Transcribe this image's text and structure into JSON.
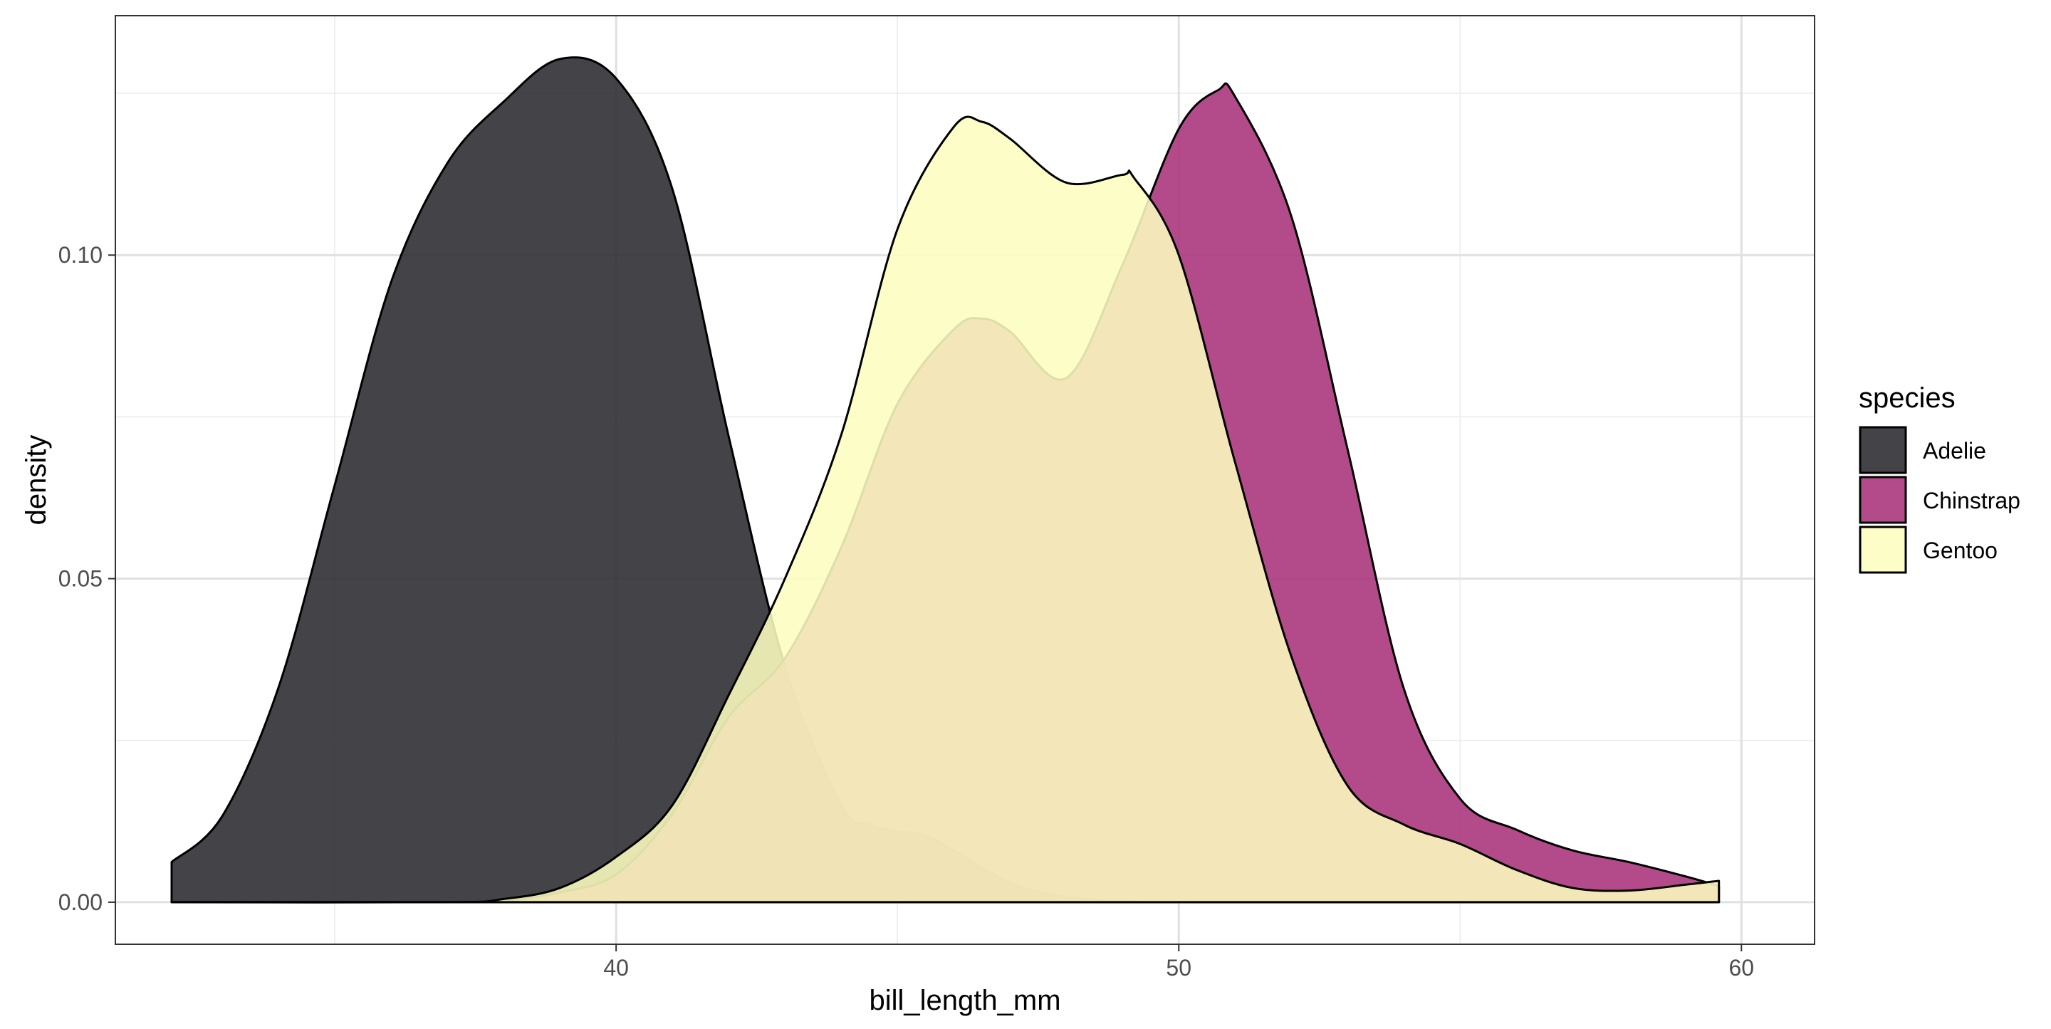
{
  "chart_data": {
    "type": "area",
    "title": "",
    "xlabel": "bill_length_mm",
    "ylabel": "density",
    "xlim": [
      31.1,
      61.3
    ],
    "ylim": [
      -0.0065,
      0.137
    ],
    "x_ticks": [
      40,
      50,
      60
    ],
    "x_tick_labels": [
      "40",
      "50",
      "60"
    ],
    "y_ticks": [
      0.0,
      0.05,
      0.1
    ],
    "y_tick_labels": [
      "0.00",
      "0.05",
      "0.10"
    ],
    "grid": true,
    "legend": {
      "title": "species",
      "placement": "right"
    },
    "series": [
      {
        "name": "Adelie",
        "color": "#2A292E",
        "points": [
          [
            32.1,
            0.0062
          ],
          [
            33.0,
            0.0133
          ],
          [
            34.0,
            0.0332
          ],
          [
            35.0,
            0.0645
          ],
          [
            36.0,
            0.0958
          ],
          [
            37.0,
            0.1142
          ],
          [
            38.0,
            0.1237
          ],
          [
            39.0,
            0.1303
          ],
          [
            40.0,
            0.1273
          ],
          [
            41.0,
            0.1102
          ],
          [
            42.0,
            0.072
          ],
          [
            43.0,
            0.0365
          ],
          [
            44.0,
            0.015
          ],
          [
            44.5,
            0.012
          ],
          [
            45.0,
            0.011
          ],
          [
            45.5,
            0.0103
          ],
          [
            46.0,
            0.008
          ],
          [
            47.0,
            0.003
          ],
          [
            48.0,
            0.0008
          ],
          [
            49.0,
            0.0002
          ],
          [
            50.0,
            0.0
          ],
          [
            55.0,
            0.0
          ],
          [
            59.6,
            0.0
          ]
        ]
      },
      {
        "name": "Chinstrap",
        "color": "#A8327A",
        "points": [
          [
            32.1,
            0.0
          ],
          [
            37.0,
            0.0
          ],
          [
            38.0,
            0.0002
          ],
          [
            39.0,
            0.0015
          ],
          [
            40.0,
            0.0043
          ],
          [
            41.0,
            0.0137
          ],
          [
            42.0,
            0.0286
          ],
          [
            43.0,
            0.0377
          ],
          [
            44.0,
            0.0548
          ],
          [
            45.0,
            0.077
          ],
          [
            46.0,
            0.0885
          ],
          [
            46.5,
            0.0902
          ],
          [
            47.0,
            0.0882
          ],
          [
            48.0,
            0.081
          ],
          [
            49.0,
            0.0985
          ],
          [
            50.0,
            0.1195
          ],
          [
            50.7,
            0.1255
          ],
          [
            51.0,
            0.1245
          ],
          [
            52.0,
            0.106
          ],
          [
            53.0,
            0.07
          ],
          [
            54.0,
            0.033
          ],
          [
            55.0,
            0.016
          ],
          [
            56.0,
            0.0112
          ],
          [
            57.0,
            0.008
          ],
          [
            58.0,
            0.0062
          ],
          [
            59.0,
            0.004
          ],
          [
            59.6,
            0.0025
          ]
        ]
      },
      {
        "name": "Gentoo",
        "color": "#FCFDBF",
        "points": [
          [
            32.1,
            0.0
          ],
          [
            37.0,
            0.0
          ],
          [
            38.0,
            0.0005
          ],
          [
            39.0,
            0.0022
          ],
          [
            40.0,
            0.007
          ],
          [
            41.0,
            0.015
          ],
          [
            42.0,
            0.032
          ],
          [
            43.0,
            0.05
          ],
          [
            44.0,
            0.0722
          ],
          [
            45.0,
            0.104
          ],
          [
            46.0,
            0.1198
          ],
          [
            46.5,
            0.1206
          ],
          [
            47.0,
            0.118
          ],
          [
            48.0,
            0.1112
          ],
          [
            49.0,
            0.1124
          ],
          [
            49.2,
            0.112
          ],
          [
            50.0,
            0.1
          ],
          [
            51.0,
            0.068
          ],
          [
            52.0,
            0.038
          ],
          [
            53.0,
            0.018
          ],
          [
            54.0,
            0.012
          ],
          [
            55.0,
            0.009
          ],
          [
            56.0,
            0.005
          ],
          [
            57.0,
            0.0022
          ],
          [
            58.0,
            0.0018
          ],
          [
            59.0,
            0.0027
          ],
          [
            59.6,
            0.0033
          ]
        ]
      }
    ]
  }
}
